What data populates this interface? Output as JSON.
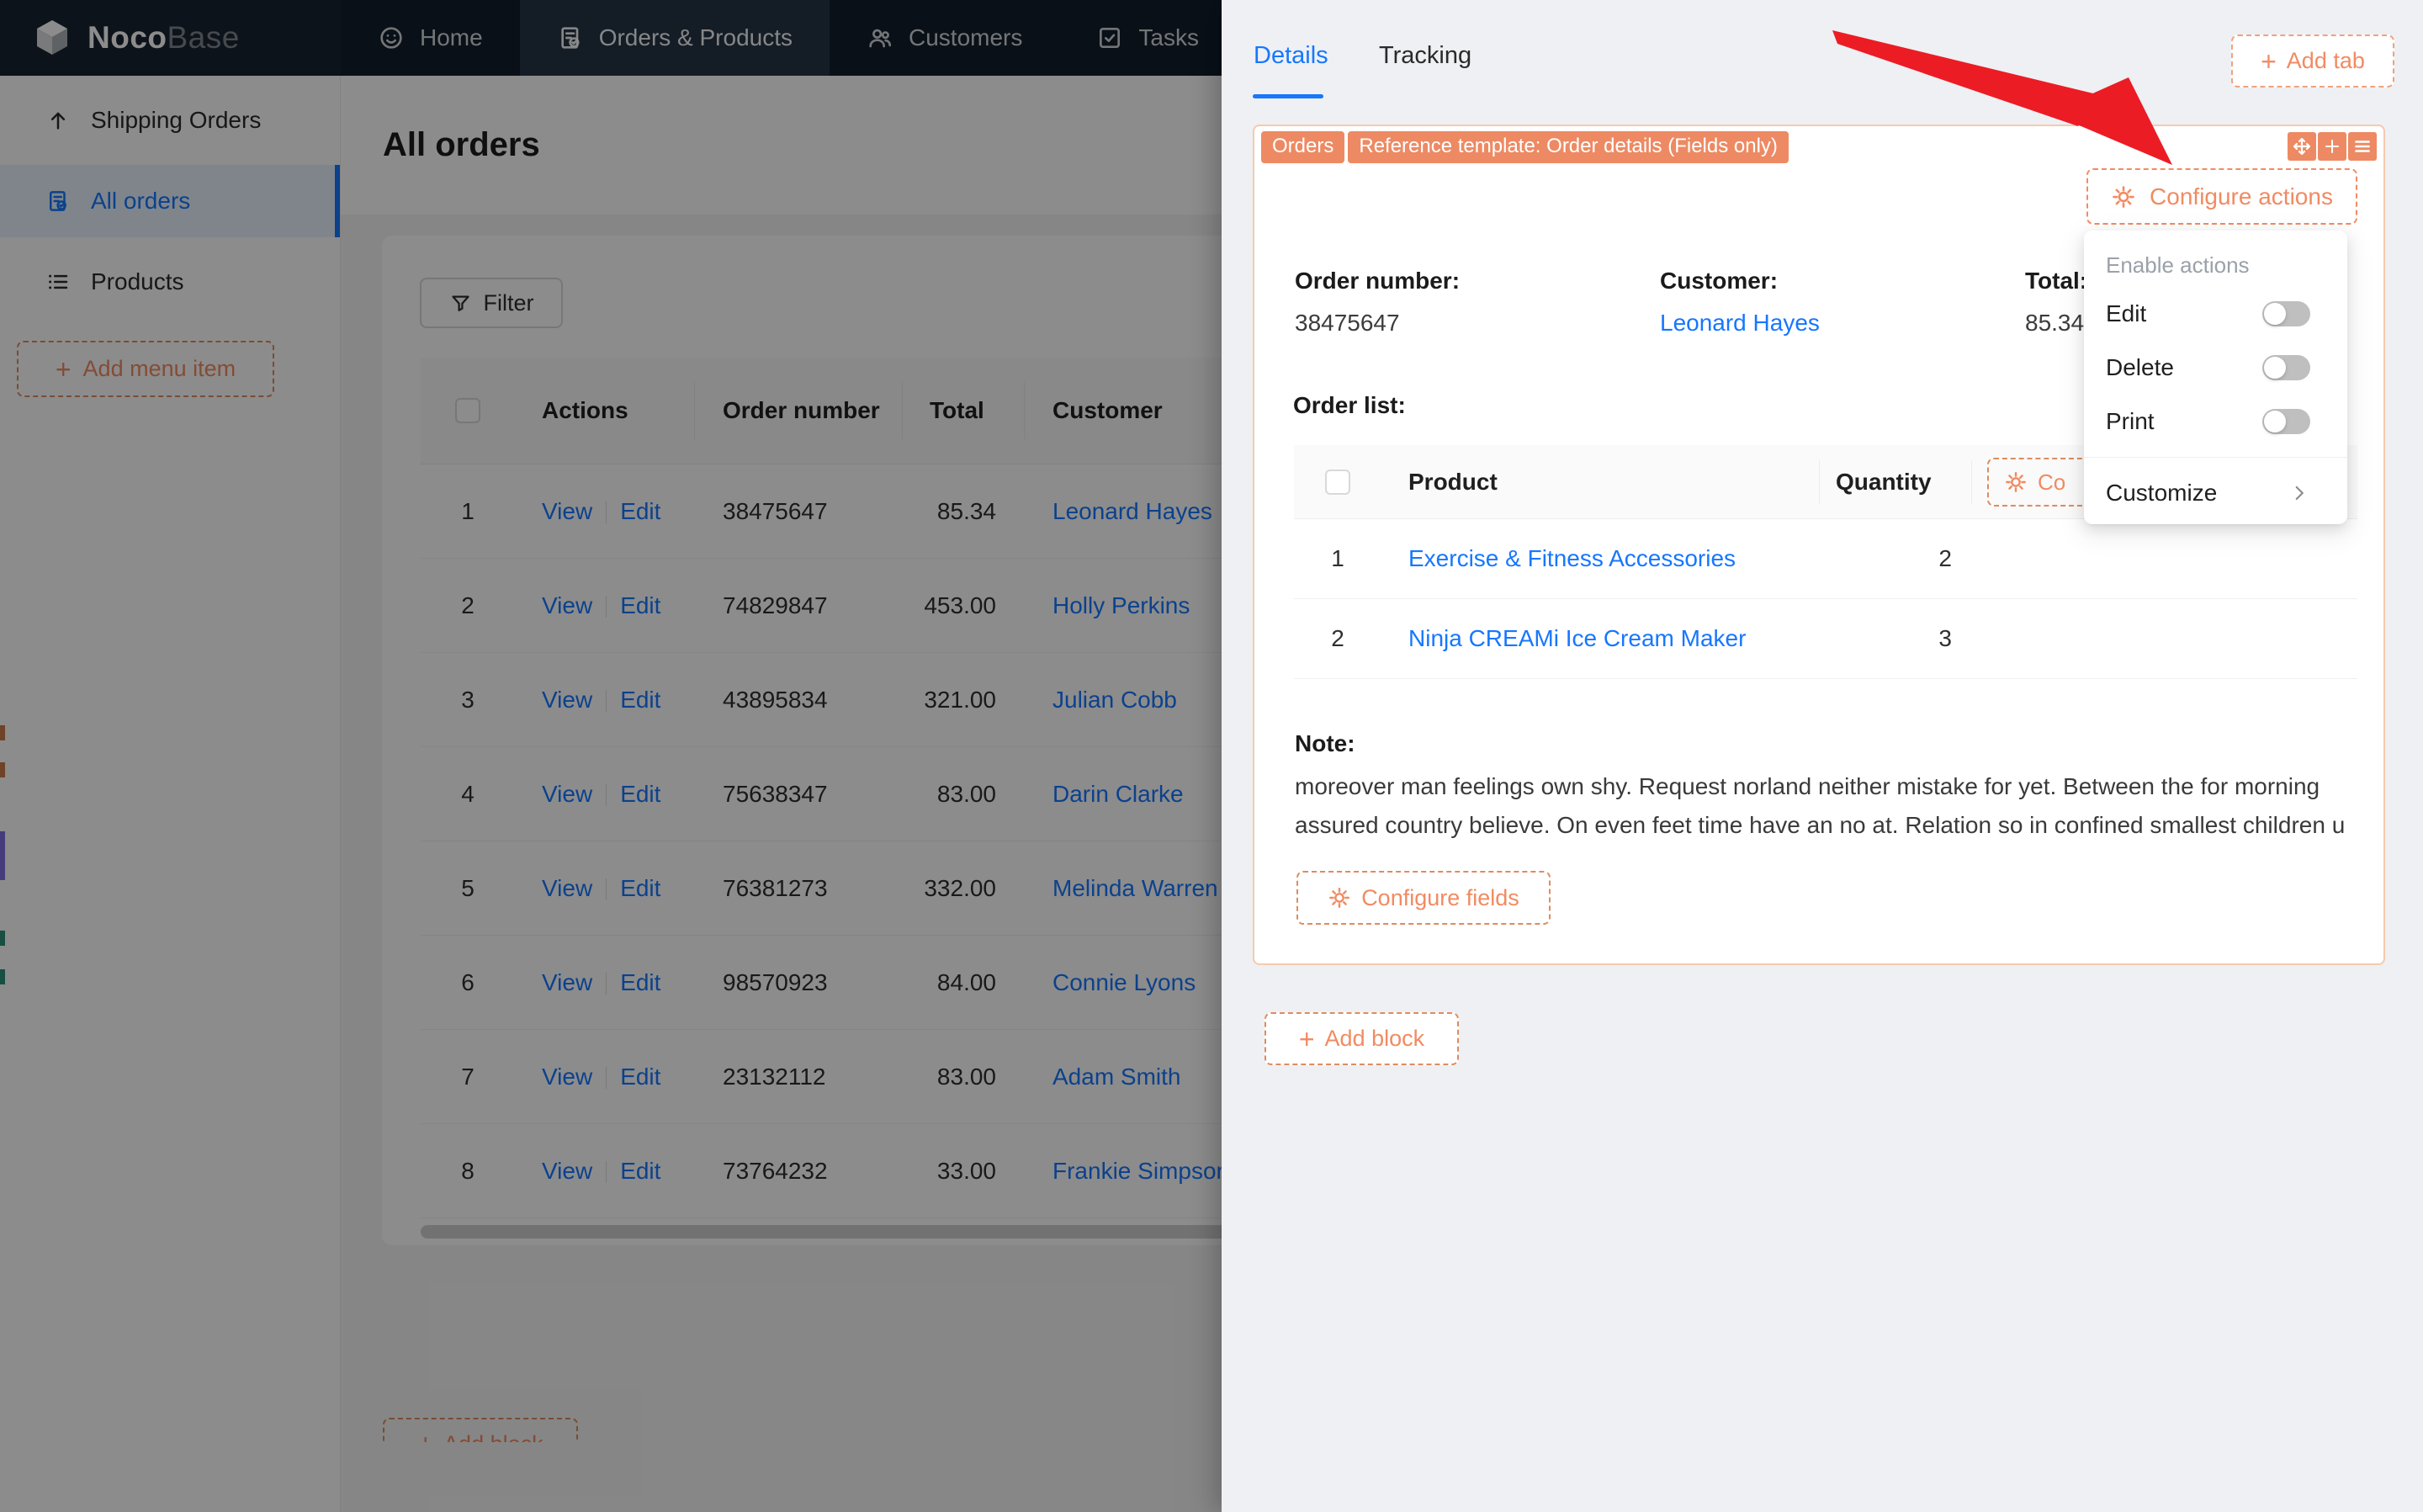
{
  "nav": {
    "logo": {
      "primary": "Noco",
      "secondary": "Base",
      "icon": "cube-logo-icon"
    },
    "items": [
      {
        "label": "Home",
        "icon": "smiley-icon",
        "active": false
      },
      {
        "label": "Orders & Products",
        "icon": "file-check-icon",
        "active": true
      },
      {
        "label": "Customers",
        "icon": "users-icon",
        "active": false
      },
      {
        "label": "Tasks",
        "icon": "check-square-icon",
        "active": false
      }
    ]
  },
  "sidebar": {
    "items": [
      {
        "label": "Shipping Orders",
        "icon": "arrow-up-icon",
        "selected": false
      },
      {
        "label": "All orders",
        "icon": "file-check-icon",
        "selected": true
      },
      {
        "label": "Products",
        "icon": "list-icon",
        "selected": false
      }
    ],
    "add_menu_item_label": "Add menu item"
  },
  "main": {
    "page_title": "All orders",
    "filter_label": "Filter",
    "table": {
      "columns": [
        "",
        "Actions",
        "Order number",
        "Total",
        "Customer"
      ],
      "rows": [
        {
          "n": "1",
          "actions": [
            "View",
            "Edit"
          ],
          "order_number": "38475647",
          "total": "85.34",
          "customer": "Leonard Hayes"
        },
        {
          "n": "2",
          "actions": [
            "View",
            "Edit"
          ],
          "order_number": "74829847",
          "total": "453.00",
          "customer": "Holly Perkins"
        },
        {
          "n": "3",
          "actions": [
            "View",
            "Edit"
          ],
          "order_number": "43895834",
          "total": "321.00",
          "customer": "Julian Cobb"
        },
        {
          "n": "4",
          "actions": [
            "View",
            "Edit"
          ],
          "order_number": "75638347",
          "total": "83.00",
          "customer": "Darin Clarke"
        },
        {
          "n": "5",
          "actions": [
            "View",
            "Edit"
          ],
          "order_number": "76381273",
          "total": "332.00",
          "customer": "Melinda Warren"
        },
        {
          "n": "6",
          "actions": [
            "View",
            "Edit"
          ],
          "order_number": "98570923",
          "total": "84.00",
          "customer": "Connie Lyons"
        },
        {
          "n": "7",
          "actions": [
            "View",
            "Edit"
          ],
          "order_number": "23132112",
          "total": "83.00",
          "customer": "Adam Smith"
        },
        {
          "n": "8",
          "actions": [
            "View",
            "Edit"
          ],
          "order_number": "73764232",
          "total": "33.00",
          "customer": "Frankie Simpson"
        }
      ]
    },
    "add_block_label": "Add block"
  },
  "drawer": {
    "tabs": [
      {
        "label": "Details",
        "active": true
      },
      {
        "label": "Tracking",
        "active": false
      }
    ],
    "add_tab_label": "Add tab",
    "block": {
      "badges": [
        "Orders",
        "Reference template: Order details (Fields only)"
      ],
      "toolbar_icons": [
        "drag-move-icon",
        "plus-icon",
        "menu-icon"
      ],
      "configure_actions_label": "Configure actions",
      "fields": [
        {
          "label": "Order number:",
          "value": "38475647",
          "is_link": false
        },
        {
          "label": "Customer:",
          "value": "Leonard Hayes",
          "is_link": true
        },
        {
          "label": "Total:",
          "value": "85.34",
          "is_link": false
        }
      ],
      "order_list_label": "Order list:",
      "subtable": {
        "columns": [
          "Product",
          "Quantity"
        ],
        "configure_button_partial_label": "Co",
        "rows": [
          {
            "n": "1",
            "product": "Exercise & Fitness Accessories",
            "quantity": "2"
          },
          {
            "n": "2",
            "product": "Ninja CREAMi Ice Cream Maker",
            "quantity": "3"
          }
        ]
      },
      "note_label": "Note:",
      "note_text": "moreover man feelings own shy. Request norland neither mistake for yet. Between the for morning\nassured country believe. On even feet time have an no at. Relation so in confined smallest children u",
      "configure_fields_label": "Configure fields"
    },
    "add_block_label": "Add block"
  },
  "popover": {
    "section_label": "Enable actions",
    "toggles": [
      {
        "label": "Edit",
        "on": false
      },
      {
        "label": "Delete",
        "on": false
      },
      {
        "label": "Print",
        "on": false
      }
    ],
    "customize_label": "Customize"
  },
  "colors": {
    "accent_orange": "#f18b62",
    "badge_orange": "#ed8a63",
    "link_blue": "#1677ff",
    "arrow_red": "#ec1c24",
    "navbar_bg": "#111e2c",
    "nav_active_bg": "#263445",
    "sidebar_selected_bg": "#e8f3fd"
  }
}
